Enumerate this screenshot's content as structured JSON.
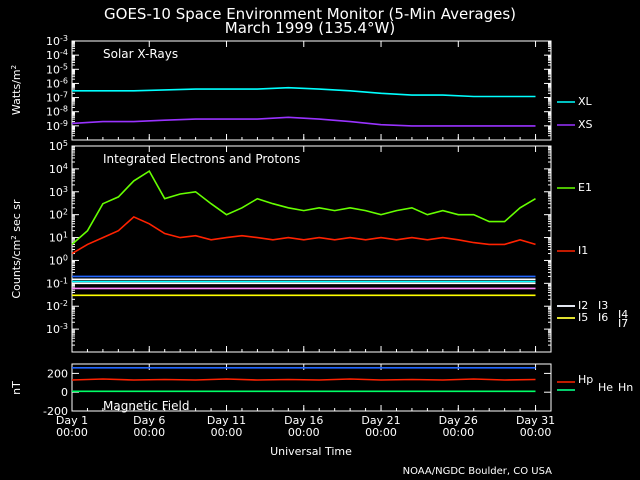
{
  "chart_data": [
    {
      "type": "line",
      "title": "GOES-10 Space Environment Monitor (5-Min Averages)",
      "subtitle": "March 1999 (135.4°W)",
      "panel_label": "Solar X-Rays",
      "ylabel": "Watts/m",
      "ylabel_sup": "2",
      "yscale": "log",
      "ylim": [
        1e-10,
        0.001
      ],
      "yticks": [
        {
          "v": 0.001,
          "base": "10",
          "exp": "-3"
        },
        {
          "v": 0.0001,
          "base": "10",
          "exp": "-4"
        },
        {
          "v": 1e-05,
          "base": "10",
          "exp": "-5"
        },
        {
          "v": 1e-06,
          "base": "10",
          "exp": "-6"
        },
        {
          "v": 1e-07,
          "base": "10",
          "exp": "-7"
        },
        {
          "v": 1e-08,
          "base": "10",
          "exp": "-8"
        },
        {
          "v": 1e-09,
          "base": "10",
          "exp": "-9"
        }
      ],
      "series": [
        {
          "name": "XL",
          "color": "#00ffff",
          "x": [
            1,
            3,
            5,
            7,
            9,
            11,
            13,
            15,
            17,
            19,
            21,
            23,
            25,
            27,
            29,
            31
          ],
          "values": [
            3e-07,
            3e-07,
            3e-07,
            3.5e-07,
            4e-07,
            4e-07,
            4e-07,
            5e-07,
            4e-07,
            3e-07,
            2e-07,
            1.5e-07,
            1.5e-07,
            1.2e-07,
            1.2e-07,
            1.2e-07
          ]
        },
        {
          "name": "XS",
          "color": "#9933ff",
          "x": [
            1,
            3,
            5,
            7,
            9,
            11,
            13,
            15,
            17,
            19,
            21,
            23,
            25,
            27,
            29,
            31
          ],
          "values": [
            1.5e-09,
            2e-09,
            2e-09,
            2.5e-09,
            3e-09,
            3e-09,
            3e-09,
            4e-09,
            3e-09,
            2e-09,
            1.2e-09,
            1e-09,
            1e-09,
            1e-09,
            1e-09,
            1e-09
          ]
        }
      ]
    },
    {
      "type": "line",
      "panel_label": "Integrated Electrons and Protons",
      "ylabel": "Counts/cm",
      "ylabel_sup": "2",
      "ylabel_rest": " sec sr",
      "yscale": "log",
      "ylim": [
        0.0001,
        100000.0
      ],
      "yticks": [
        {
          "v": 100000.0,
          "base": "10",
          "exp": "5"
        },
        {
          "v": 10000.0,
          "base": "10",
          "exp": "4"
        },
        {
          "v": 1000.0,
          "base": "10",
          "exp": "3"
        },
        {
          "v": 100.0,
          "base": "10",
          "exp": "2"
        },
        {
          "v": 10.0,
          "base": "10",
          "exp": "1"
        },
        {
          "v": 1.0,
          "base": "10",
          "exp": "0"
        },
        {
          "v": 0.1,
          "base": "10",
          "exp": "-1"
        },
        {
          "v": 0.01,
          "base": "10",
          "exp": "-2"
        },
        {
          "v": 0.001,
          "base": "10",
          "exp": "-3"
        }
      ],
      "series": [
        {
          "name": "E1",
          "color": "#66ff00",
          "x": [
            1,
            2,
            3,
            4,
            5,
            6,
            7,
            8,
            9,
            10,
            11,
            12,
            13,
            14,
            15,
            16,
            17,
            18,
            19,
            20,
            21,
            22,
            23,
            24,
            25,
            26,
            27,
            28,
            29,
            30,
            31
          ],
          "values": [
            5,
            20,
            300,
            600,
            3000,
            8000,
            500,
            800,
            1000,
            300,
            100,
            200,
            500,
            300,
            200,
            150,
            200,
            150,
            200,
            150,
            100,
            150,
            200,
            100,
            150,
            100,
            100,
            50,
            50,
            200,
            500
          ]
        },
        {
          "name": "I1",
          "color": "#ff2200",
          "x": [
            1,
            2,
            3,
            4,
            5,
            6,
            7,
            8,
            9,
            10,
            11,
            12,
            13,
            14,
            15,
            16,
            17,
            18,
            19,
            20,
            21,
            22,
            23,
            24,
            25,
            26,
            27,
            28,
            29,
            30,
            31
          ],
          "values": [
            2,
            5,
            10,
            20,
            80,
            40,
            15,
            10,
            12,
            8,
            10,
            12,
            10,
            8,
            10,
            8,
            10,
            8,
            10,
            8,
            10,
            8,
            10,
            8,
            10,
            8,
            6,
            5,
            5,
            8,
            5
          ]
        },
        {
          "name": "I2",
          "color": "#2266ff",
          "x": [
            1,
            31
          ],
          "values": [
            0.2,
            0.2
          ]
        },
        {
          "name": "I3",
          "color": "#ffffff",
          "x": [
            1,
            31
          ],
          "values": [
            0.15,
            0.15
          ]
        },
        {
          "name": "I4",
          "color": "#ffffff",
          "x": [
            1,
            31
          ],
          "values": [
            0.1,
            0.1
          ]
        },
        {
          "name": "I5",
          "color": "#00ffff",
          "x": [
            1,
            31
          ],
          "values": [
            0.12,
            0.12
          ]
        },
        {
          "name": "I6",
          "color": "#ff88ff",
          "x": [
            1,
            31
          ],
          "values": [
            0.06,
            0.06
          ]
        },
        {
          "name": "I7",
          "color": "#ffff00",
          "x": [
            1,
            31
          ],
          "values": [
            0.03,
            0.03
          ]
        }
      ]
    },
    {
      "type": "line",
      "panel_label": "Magnetic Field",
      "ylabel": "nT",
      "ylim": [
        -200,
        300
      ],
      "yticks": [
        {
          "v": 200,
          "label": "200"
        },
        {
          "v": 0,
          "label": "0"
        },
        {
          "v": -200,
          "label": "-200"
        }
      ],
      "series": [
        {
          "name": "Hp",
          "color": "#ff2200",
          "x": [
            1,
            3,
            5,
            7,
            9,
            11,
            13,
            15,
            17,
            19,
            21,
            23,
            25,
            27,
            29,
            31
          ],
          "values": [
            130,
            140,
            130,
            135,
            130,
            140,
            130,
            135,
            130,
            140,
            130,
            135,
            130,
            140,
            130,
            135
          ]
        },
        {
          "name": "He",
          "color": "#2266ff",
          "x": [
            1,
            31
          ],
          "values": [
            260,
            260
          ]
        },
        {
          "name": "Hn",
          "color": "#00ff66",
          "x": [
            1,
            31
          ],
          "values": [
            10,
            10
          ]
        }
      ]
    }
  ],
  "x_axis": {
    "xlabel": "Universal Time",
    "xlim": [
      1,
      32
    ],
    "ticks": [
      {
        "v": 1,
        "day": "Day  1",
        "time": "00:00"
      },
      {
        "v": 6,
        "day": "Day  6",
        "time": "00:00"
      },
      {
        "v": 11,
        "day": "Day 11",
        "time": "00:00"
      },
      {
        "v": 16,
        "day": "Day 16",
        "time": "00:00"
      },
      {
        "v": 21,
        "day": "Day 21",
        "time": "00:00"
      },
      {
        "v": 26,
        "day": "Day 26",
        "time": "00:00"
      },
      {
        "v": 31,
        "day": "Day 31",
        "time": "00:00"
      }
    ]
  },
  "credit": "NOAA/NGDC Boulder, CO USA"
}
